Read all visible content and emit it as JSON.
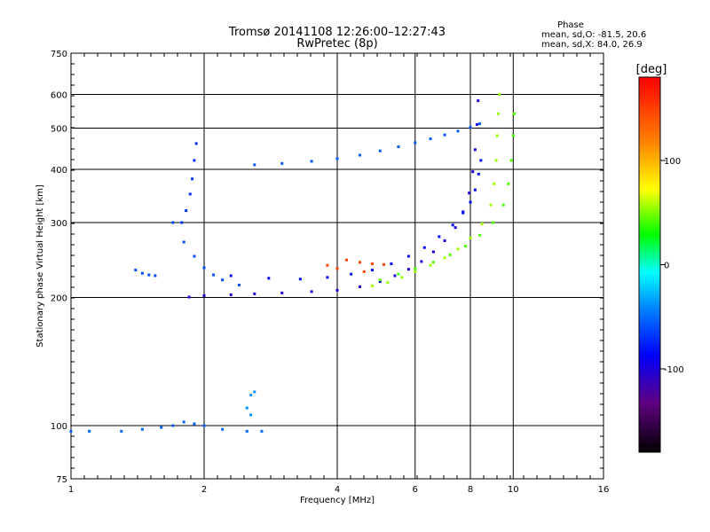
{
  "chart_data": {
    "type": "scatter",
    "title": "Tromsø 20141108 12:26:00–12:27:43",
    "subtitle": "RwPretec (8p)",
    "xlabel": "Frequency [MHz]",
    "ylabel": "Stationary phase Virtual Height [km]",
    "x_scale": "log",
    "y_scale": "log",
    "xlim": [
      1,
      16
    ],
    "ylim": [
      75,
      750
    ],
    "x_ticks": [
      1,
      2,
      4,
      6,
      8,
      10,
      16
    ],
    "x_tick_labels": [
      "1",
      "2",
      "4",
      "6",
      "8",
      "10",
      "16"
    ],
    "y_ticks": [
      75,
      100,
      200,
      300,
      400,
      500,
      600,
      750
    ],
    "y_tick_labels": [
      "75",
      "100",
      "200",
      "300",
      "400",
      "500",
      "600",
      "750"
    ],
    "grid": true,
    "stats": {
      "heading": "Phase",
      "line_o": "mean, sd,O: -81.5, 20.6",
      "line_x": "mean, sd,X:  84.0, 26.9"
    },
    "colorbar": {
      "label": "[deg]",
      "range": [
        -180,
        180
      ],
      "ticks": [
        100,
        0,
        -100
      ],
      "tick_labels": [
        "100",
        "0",
        "-100"
      ]
    },
    "series": [
      {
        "points": [
          [
            1.85,
            200.5
          ],
          [
            2.0,
            202
          ],
          [
            2.3,
            203
          ],
          [
            2.6,
            204
          ],
          [
            3.0,
            205
          ],
          [
            3.5,
            206.5
          ],
          [
            4.0,
            208
          ],
          [
            4.5,
            212
          ],
          [
            5.0,
            218
          ],
          [
            5.4,
            225
          ],
          [
            5.8,
            233
          ],
          [
            6.2,
            243
          ],
          [
            6.6,
            256
          ],
          [
            7.0,
            272
          ],
          [
            7.4,
            292
          ],
          [
            7.7,
            318
          ],
          [
            7.95,
            352
          ],
          [
            8.1,
            395
          ],
          [
            8.2,
            445
          ],
          [
            8.28,
            510
          ],
          [
            8.33,
            580
          ]
        ],
        "phase": -110
      },
      {
        "points": [
          [
            2.3,
            225
          ],
          [
            2.8,
            222
          ],
          [
            3.3,
            221
          ],
          [
            3.8,
            223
          ],
          [
            4.3,
            227
          ],
          [
            4.8,
            232
          ],
          [
            5.3,
            240
          ],
          [
            5.8,
            250
          ],
          [
            6.3,
            262
          ],
          [
            6.8,
            278
          ],
          [
            7.3,
            296
          ],
          [
            7.7,
            316
          ],
          [
            8.0,
            335
          ],
          [
            8.2,
            358
          ],
          [
            8.35,
            390
          ],
          [
            8.45,
            420
          ]
        ],
        "phase": -95
      },
      {
        "points": [
          [
            2.6,
            410
          ],
          [
            3.0,
            413
          ],
          [
            3.5,
            418
          ],
          [
            4.0,
            424
          ],
          [
            4.5,
            432
          ],
          [
            5.0,
            442
          ],
          [
            5.5,
            452
          ],
          [
            6.0,
            462
          ],
          [
            6.5,
            472
          ],
          [
            7.0,
            482
          ],
          [
            7.5,
            492
          ],
          [
            8.0,
            502
          ],
          [
            8.4,
            512
          ]
        ],
        "phase": -65
      },
      {
        "points": [
          [
            4.8,
            213
          ],
          [
            5.2,
            217
          ],
          [
            5.6,
            223
          ],
          [
            6.0,
            230
          ],
          [
            6.5,
            238
          ],
          [
            7.0,
            248
          ],
          [
            7.5,
            260
          ],
          [
            8.0,
            276
          ],
          [
            8.5,
            298
          ],
          [
            8.9,
            330
          ],
          [
            9.05,
            370
          ],
          [
            9.15,
            420
          ],
          [
            9.2,
            480
          ],
          [
            9.25,
            540
          ],
          [
            9.3,
            600
          ]
        ],
        "phase": 60
      },
      {
        "points": [
          [
            5.0,
            220
          ],
          [
            5.5,
            227
          ],
          [
            6.0,
            234
          ],
          [
            6.6,
            242
          ],
          [
            7.2,
            252
          ],
          [
            7.8,
            264
          ],
          [
            8.4,
            280
          ],
          [
            9.0,
            300
          ],
          [
            9.5,
            330
          ],
          [
            9.75,
            370
          ],
          [
            9.9,
            420
          ],
          [
            10.0,
            480
          ],
          [
            10.05,
            540
          ]
        ],
        "phase": 45
      },
      {
        "points": [
          [
            1.78,
            300
          ],
          [
            1.82,
            320
          ],
          [
            1.86,
            350
          ],
          [
            1.88,
            380
          ],
          [
            1.9,
            420
          ],
          [
            1.92,
            460
          ]
        ],
        "phase": -80
      },
      {
        "points": [
          [
            1.4,
            232
          ],
          [
            1.45,
            228
          ],
          [
            1.5,
            226
          ],
          [
            1.55,
            225
          ]
        ],
        "phase": -70
      },
      {
        "points": [
          [
            1.7,
            300
          ],
          [
            1.8,
            270
          ],
          [
            1.9,
            250
          ],
          [
            2.0,
            235
          ],
          [
            2.1,
            226
          ],
          [
            2.2,
            220
          ],
          [
            2.4,
            214
          ]
        ],
        "phase": -70
      },
      {
        "points": [
          [
            4.2,
            245
          ],
          [
            4.5,
            242
          ],
          [
            4.8,
            240
          ],
          [
            5.1,
            239
          ],
          [
            3.8,
            238
          ],
          [
            4.0,
            234
          ],
          [
            4.6,
            230
          ]
        ],
        "phase": 150
      },
      {
        "points": [
          [
            1.0,
            97
          ],
          [
            1.1,
            97
          ],
          [
            1.3,
            97
          ],
          [
            1.45,
            98
          ],
          [
            1.6,
            99
          ],
          [
            1.7,
            100
          ],
          [
            1.8,
            102
          ],
          [
            1.9,
            101
          ],
          [
            2.0,
            100
          ],
          [
            2.2,
            98
          ],
          [
            2.5,
            97
          ],
          [
            2.7,
            97
          ]
        ],
        "phase": -60
      },
      {
        "points": [
          [
            2.55,
            118
          ],
          [
            2.6,
            120
          ],
          [
            2.5,
            110
          ],
          [
            2.55,
            106
          ]
        ],
        "phase": -45
      }
    ]
  }
}
